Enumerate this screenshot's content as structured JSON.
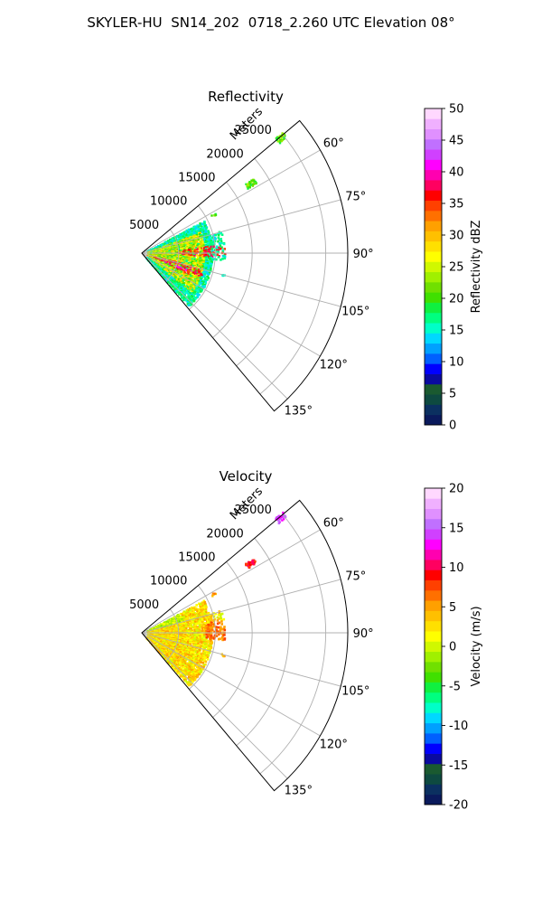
{
  "suptitle": "SKYLER-HU  SN14_202  0718_2.260 UTC Elevation 08°",
  "chart_data": [
    {
      "type": "polar-sector",
      "title": "Reflectivity",
      "range_label": "Meters",
      "range_ticks": [
        "5000",
        "10000",
        "15000",
        "20000",
        "25000"
      ],
      "range_max": 28000,
      "azimuth_ticks": [
        "60°",
        "75°",
        "90°",
        "105°",
        "120°",
        "135°"
      ],
      "azimuth_min": 50,
      "azimuth_max": 140,
      "grid": true,
      "colorbar": {
        "label": "Reflectivity dBZ",
        "ticks": [
          "0",
          "5",
          "10",
          "15",
          "20",
          "25",
          "30",
          "35",
          "40",
          "45",
          "50"
        ],
        "min": 0,
        "max": 50,
        "colors": [
          "#0a1a5c",
          "#0b3060",
          "#0e4a40",
          "#1a5a30",
          "#0a0aa0",
          "#0000ff",
          "#0060ff",
          "#00a0ff",
          "#00d8ff",
          "#00ffc8",
          "#00ff80",
          "#10f040",
          "#40e000",
          "#70e000",
          "#a0f000",
          "#d0f800",
          "#ffff00",
          "#ffe000",
          "#ffc000",
          "#ffa000",
          "#ff7000",
          "#ff4000",
          "#ff0000",
          "#ff0060",
          "#ff00b0",
          "#ff00ff",
          "#d040ff",
          "#c070ff",
          "#e090ff",
          "#f0b0ff",
          "#ffd8ff"
        ]
      }
    },
    {
      "type": "polar-sector",
      "title": "Velocity",
      "range_label": "Meters",
      "range_ticks": [
        "5000",
        "10000",
        "15000",
        "20000",
        "25000"
      ],
      "range_max": 28000,
      "azimuth_ticks": [
        "60°",
        "75°",
        "90°",
        "105°",
        "120°",
        "135°"
      ],
      "azimuth_min": 50,
      "azimuth_max": 140,
      "grid": true,
      "colorbar": {
        "label": "Velocity (m/s)",
        "ticks": [
          "-20",
          "-15",
          "-10",
          "-5",
          "0",
          "5",
          "10",
          "15",
          "20"
        ],
        "min": -20,
        "max": 20,
        "colors": [
          "#0a1a5c",
          "#0b3060",
          "#0e4a40",
          "#1a5a30",
          "#0a0aa0",
          "#0000ff",
          "#0060ff",
          "#00a0ff",
          "#00d8ff",
          "#00ffc8",
          "#00ff80",
          "#10f040",
          "#40e000",
          "#70e000",
          "#a0f000",
          "#d0f800",
          "#ffff00",
          "#ffe000",
          "#ffc000",
          "#ffa000",
          "#ff7000",
          "#ff4000",
          "#ff0000",
          "#ff0060",
          "#ff00b0",
          "#ff00ff",
          "#d040ff",
          "#c070ff",
          "#e090ff",
          "#f0b0ff",
          "#ffd8ff"
        ]
      }
    }
  ]
}
